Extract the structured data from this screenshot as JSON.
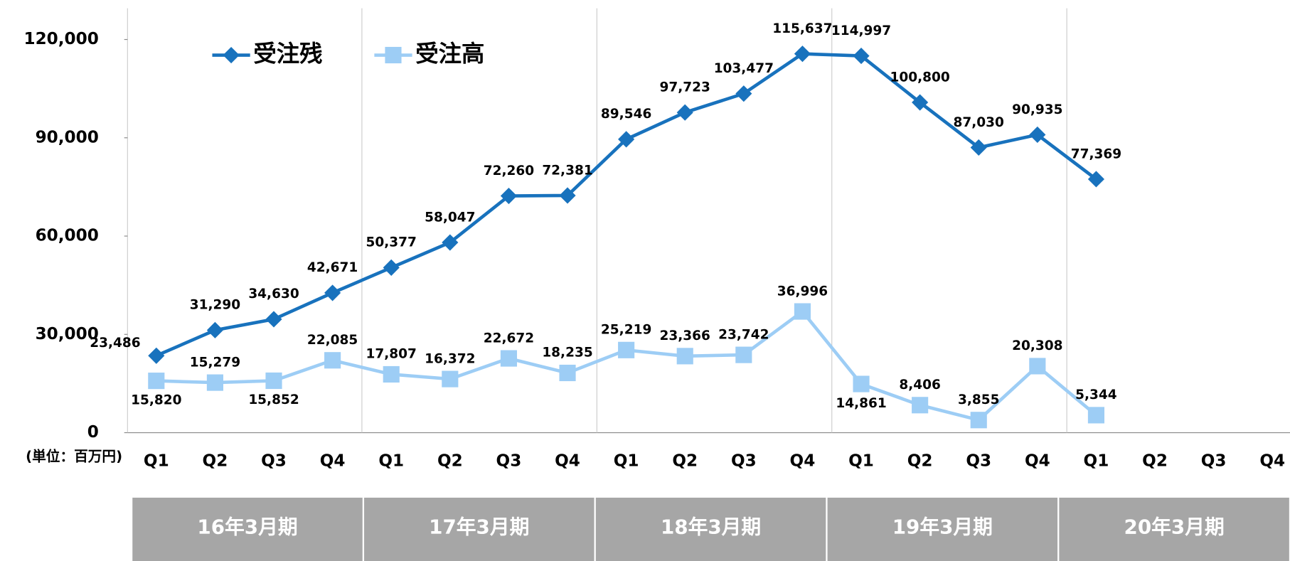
{
  "chart_data": {
    "type": "line",
    "categories": [
      "Q1",
      "Q2",
      "Q3",
      "Q4",
      "Q1",
      "Q2",
      "Q3",
      "Q4",
      "Q1",
      "Q2",
      "Q3",
      "Q4",
      "Q1",
      "Q2",
      "Q3",
      "Q4",
      "Q1",
      "Q2",
      "Q3",
      "Q4"
    ],
    "groups": [
      "16年3月期",
      "17年3月期",
      "18年3月期",
      "19年3月期",
      "20年3月期"
    ],
    "unit_label": "(単位：百万円)",
    "ylim": [
      0,
      120000
    ],
    "yticks": [
      0,
      {
        "value": 30000,
        "label": "30,000"
      },
      {
        "value": 60000,
        "label": "60,000"
      },
      {
        "value": 90000,
        "label": "90,000"
      },
      {
        "value": 120000,
        "label": "120,000"
      }
    ],
    "series": [
      {
        "name": "受注残",
        "color": "#1872bd",
        "marker": "diamond",
        "values": [
          23486,
          31290,
          34630,
          42671,
          50377,
          58047,
          72260,
          72381,
          89546,
          97723,
          103477,
          115637,
          114997,
          100800,
          87030,
          90935,
          77369,
          null,
          null,
          null
        ],
        "value_labels": [
          "23,486",
          "31,290",
          "34,630",
          "42,671",
          "50,377",
          "58,047",
          "72,260",
          "72,381",
          "89,546",
          "97,723",
          "103,477",
          "115,637",
          "114,997",
          "100,800",
          "87,030",
          "90,935",
          "77,369",
          null,
          null,
          null
        ]
      },
      {
        "name": "受注高",
        "color": "#9dcdf5",
        "marker": "square",
        "values": [
          15820,
          15279,
          15852,
          22085,
          17807,
          16372,
          22672,
          18235,
          25219,
          23366,
          23742,
          36996,
          14861,
          8406,
          3855,
          20308,
          5344,
          null,
          null,
          null
        ],
        "value_labels": [
          "15,820",
          "15,279",
          "15,852",
          "22,085",
          "17,807",
          "16,372",
          "22,672",
          "18,235",
          "25,219",
          "23,366",
          "23,742",
          "36,996",
          "14,861",
          "8,406",
          "3,855",
          "20,308",
          "5,344",
          null,
          null,
          null
        ]
      }
    ]
  }
}
